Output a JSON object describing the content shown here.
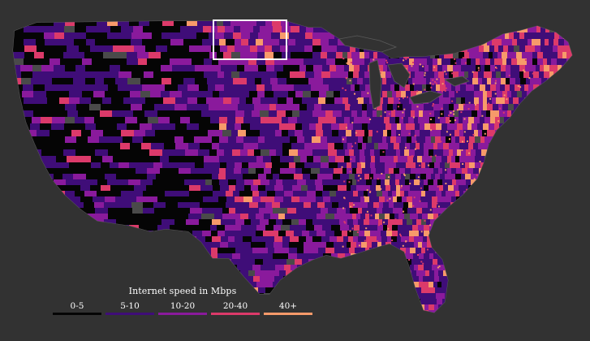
{
  "legend": {
    "title": "Internet speed in Mbps",
    "items": [
      {
        "label": "0-5",
        "color": "#050505"
      },
      {
        "label": "5-10",
        "color": "#3f0d78"
      },
      {
        "label": "10-20",
        "color": "#8a1a9c"
      },
      {
        "label": "20-40",
        "color": "#dc3a6a"
      },
      {
        "label": "40+",
        "color": "#f79a6a"
      }
    ]
  },
  "map": {
    "region": "Contiguous United States",
    "highlighted_state": "North Dakota",
    "background_color": "#323232",
    "no_data_color": "#4a4a4a",
    "highlight_outline_color": "#ffffff"
  }
}
